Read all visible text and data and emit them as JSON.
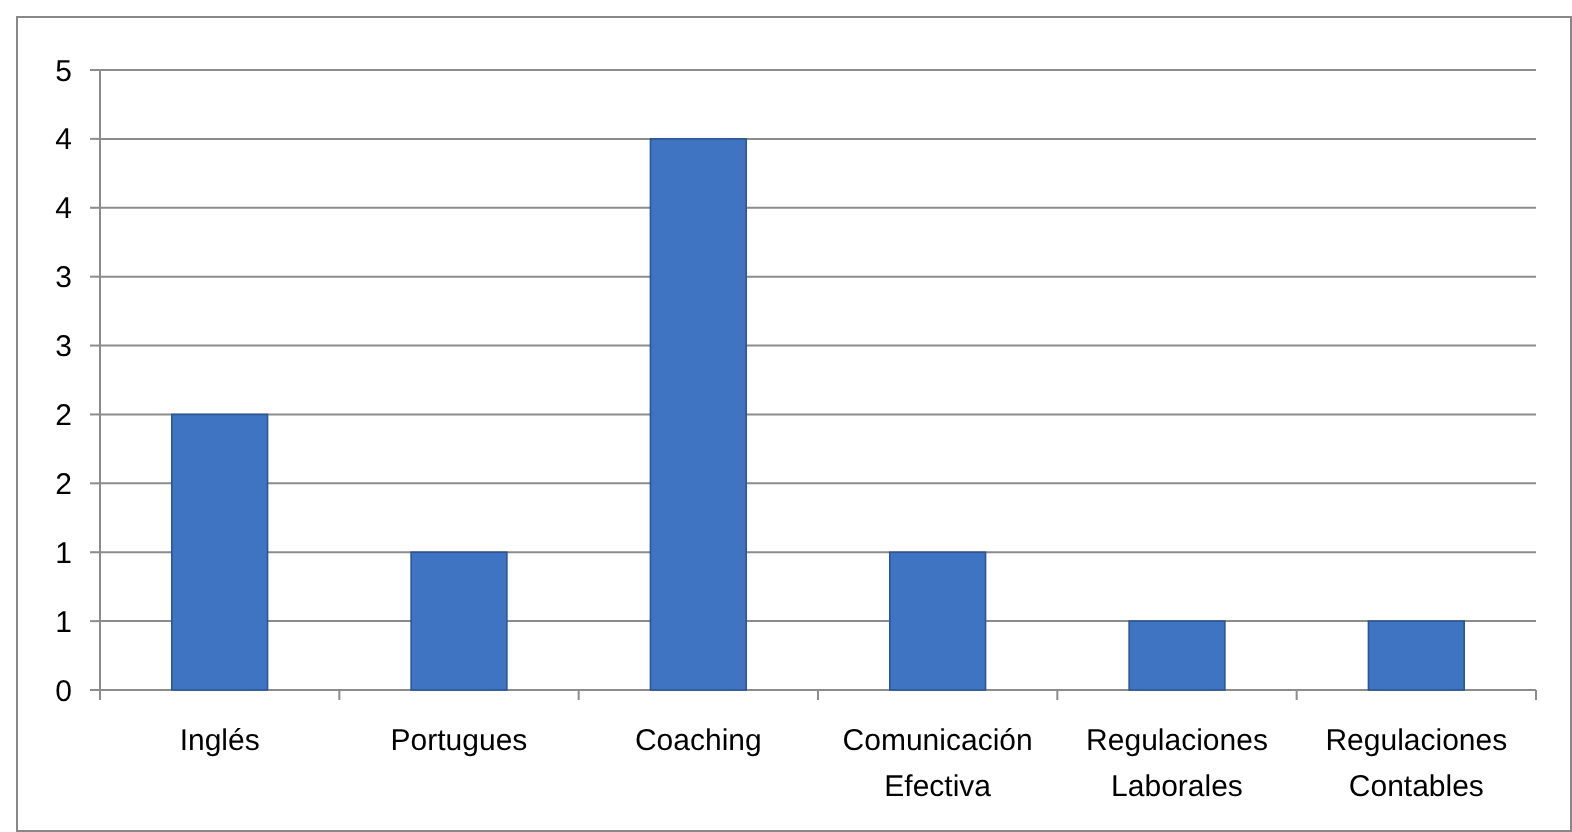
{
  "chart_data": {
    "type": "bar",
    "categories": [
      "Inglés",
      "Portugues",
      "Coaching",
      "Comunicación Efectiva",
      "Regulaciones Laborales",
      "Regulaciones Contables"
    ],
    "values": [
      2,
      1,
      4,
      1,
      0.5,
      0.5
    ],
    "color": "#3f74c2",
    "ylim": [
      0,
      4.5
    ],
    "yticks": [
      0,
      {
        "value": 0.5,
        "label": "1"
      },
      1,
      {
        "value": 1.5,
        "label": "2"
      },
      2,
      {
        "value": 2.5,
        "label": "3"
      },
      3,
      {
        "value": 3.5,
        "label": "4"
      },
      4,
      {
        "value": 4.5,
        "label": "5"
      }
    ],
    "grid": "y"
  }
}
